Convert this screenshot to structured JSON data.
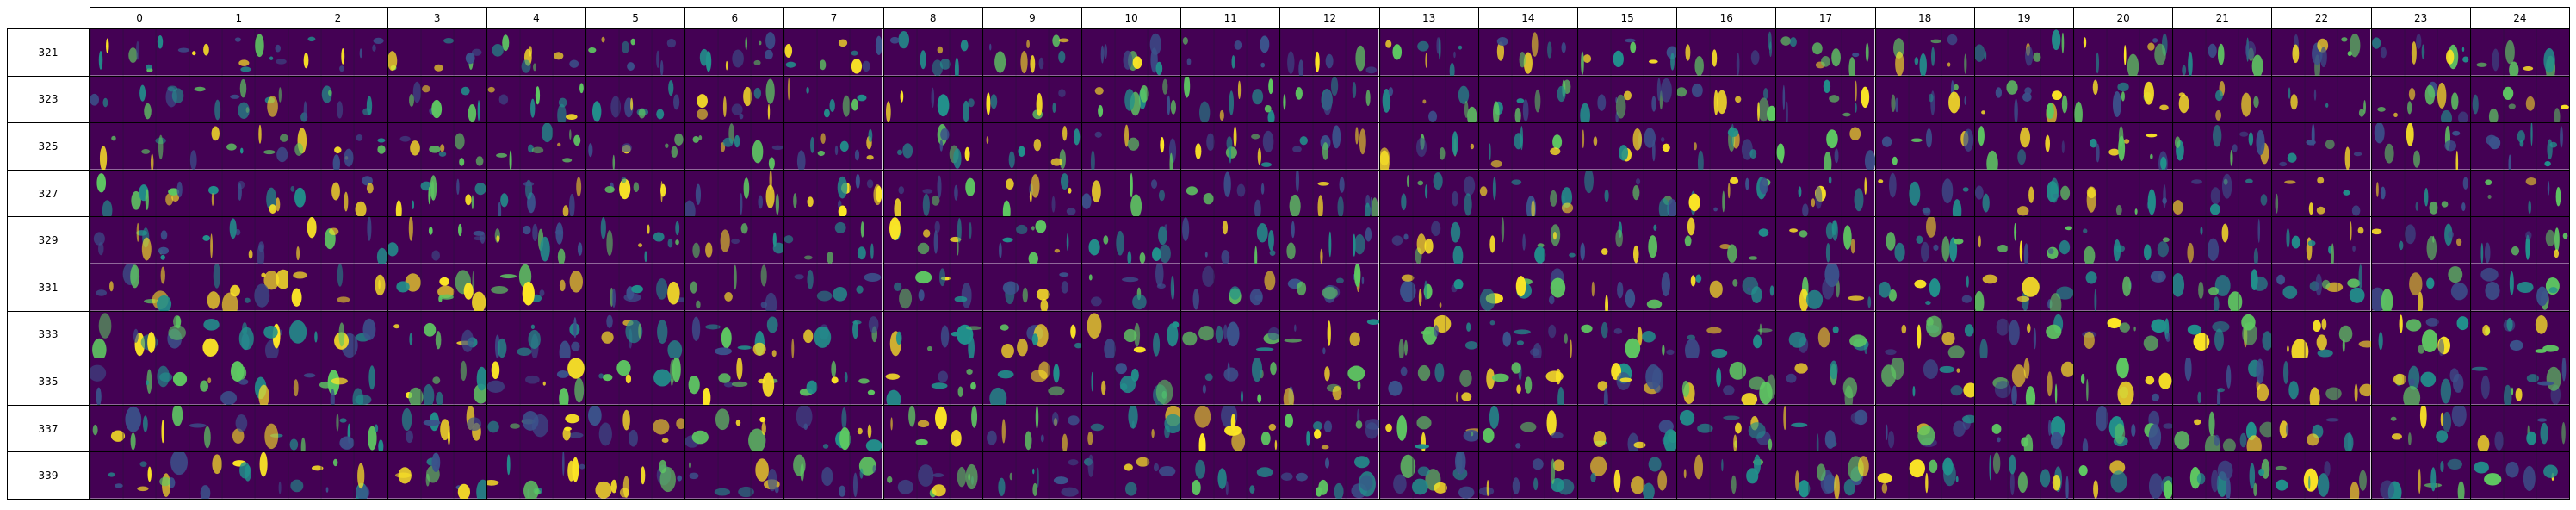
{
  "grid": {
    "column_labels": [
      "0",
      "1",
      "2",
      "3",
      "4",
      "5",
      "6",
      "7",
      "8",
      "9",
      "10",
      "11",
      "12",
      "13",
      "14",
      "15",
      "16",
      "17",
      "18",
      "19",
      "20",
      "21",
      "22",
      "23",
      "24"
    ],
    "row_labels": [
      "321",
      "323",
      "325",
      "327",
      "329",
      "331",
      "333",
      "335",
      "337",
      "339"
    ],
    "colormap": "viridis",
    "colors": {
      "background": "#440154",
      "dark_blue": "#3b528b",
      "teal": "#21918c",
      "green": "#5ec962",
      "yellow": "#fde725",
      "border": "#000000"
    }
  }
}
